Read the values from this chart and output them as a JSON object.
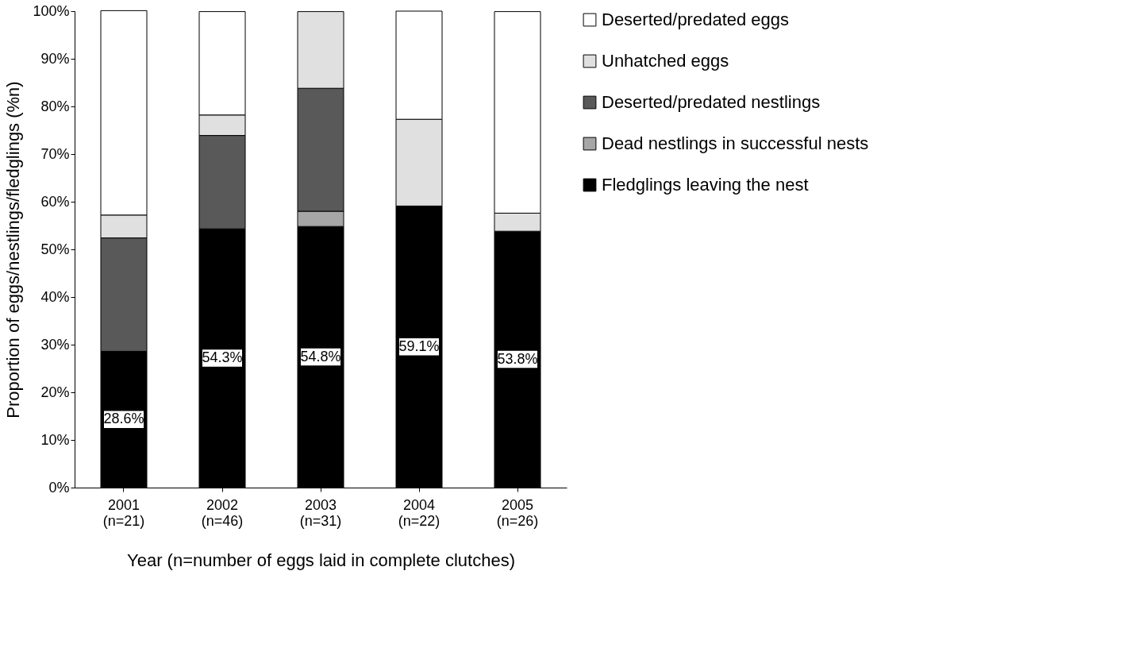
{
  "chart_data": {
    "type": "bar",
    "stacked": true,
    "xlabel": "Year (n=number of eggs laid in complete clutches)",
    "ylabel": "Proportion of eggs/nestlings/fledglings (%n)",
    "categories": [
      "2001\n(n=21)",
      "2002\n(n=46)",
      "2003\n(n=31)",
      "2004\n(n=22)",
      "2005\n(n=26)"
    ],
    "series": [
      {
        "name": "Fledglings leaving the nest",
        "color": "#000000",
        "values": [
          28.6,
          54.3,
          54.8,
          59.1,
          53.8
        ],
        "value_labels": [
          "28.6%",
          "54.3%",
          "54.8%",
          "59.1%",
          "53.8%"
        ]
      },
      {
        "name": "Dead nestlings in successful nests",
        "color": "#a6a6a6",
        "values": [
          0,
          0,
          3.2,
          0,
          0
        ]
      },
      {
        "name": "Deserted/predated nestlings",
        "color": "#595959",
        "values": [
          23.8,
          19.6,
          25.8,
          0,
          0
        ]
      },
      {
        "name": "Unhatched eggs",
        "color": "#e0e0e0",
        "values": [
          4.8,
          4.3,
          16.1,
          18.2,
          3.8
        ]
      },
      {
        "name": "Deserted/predated eggs",
        "color": "#ffffff",
        "values": [
          42.9,
          21.7,
          0,
          22.7,
          42.3
        ]
      }
    ],
    "ylim": [
      0,
      100
    ],
    "yticks": [
      {
        "value": 0,
        "label": "0%"
      },
      {
        "value": 10,
        "label": "10%"
      },
      {
        "value": 20,
        "label": "20%"
      },
      {
        "value": 30,
        "label": "30%"
      },
      {
        "value": 40,
        "label": "40%"
      },
      {
        "value": 50,
        "label": "50%"
      },
      {
        "value": 60,
        "label": "60%"
      },
      {
        "value": 70,
        "label": "70%"
      },
      {
        "value": 80,
        "label": "80%"
      },
      {
        "value": 90,
        "label": "90%"
      },
      {
        "value": 100,
        "label": "100%"
      }
    ],
    "grid": false,
    "legend": "right"
  }
}
